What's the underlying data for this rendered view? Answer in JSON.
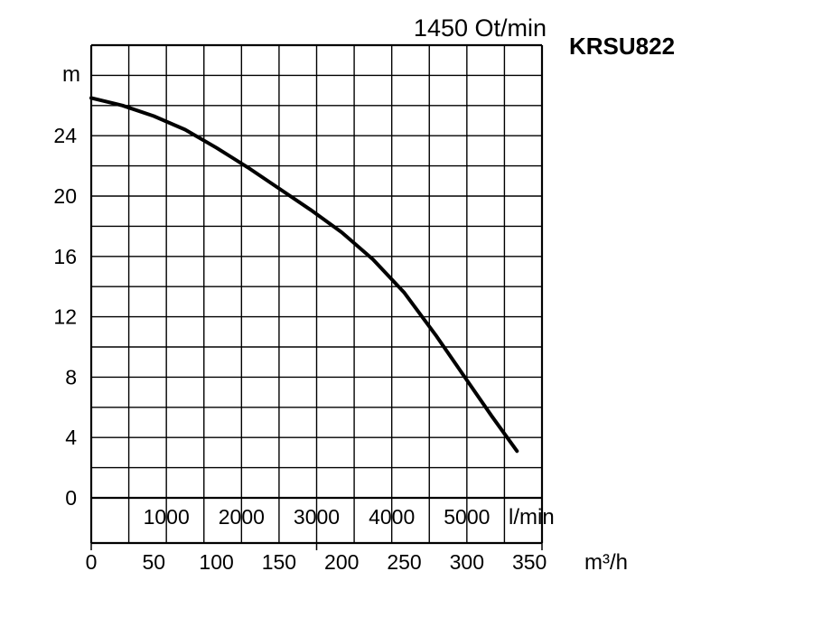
{
  "chart_data": {
    "type": "line",
    "title": "KRSU822",
    "subtitle": "1450 Ot/min",
    "ylabel": "m",
    "xlabel": "m³/h",
    "secondary_xlabel": "l/min",
    "x_ticks": [
      "0",
      "50",
      "100",
      "150",
      "200",
      "250",
      "300",
      "350"
    ],
    "secondary_x_ticks": [
      "1000",
      "2000",
      "3000",
      "4000",
      "5000"
    ],
    "y_ticks": [
      "0",
      "4",
      "8",
      "12",
      "16",
      "20",
      "24"
    ],
    "xlim": [
      0,
      360
    ],
    "ylim": [
      0,
      30
    ],
    "grid": true,
    "colors": {
      "line": "#000000",
      "grid": "#000000",
      "background": "#ffffff"
    },
    "series": [
      {
        "x": [
          0,
          25,
          50,
          75,
          100,
          125,
          150,
          175,
          200,
          225,
          250,
          275,
          300,
          320,
          340
        ],
        "y": [
          26.5,
          26,
          25.3,
          24.4,
          23.2,
          21.9,
          20.5,
          19.1,
          17.6,
          15.8,
          13.6,
          10.8,
          7.8,
          5.4,
          3.1
        ]
      }
    ]
  }
}
